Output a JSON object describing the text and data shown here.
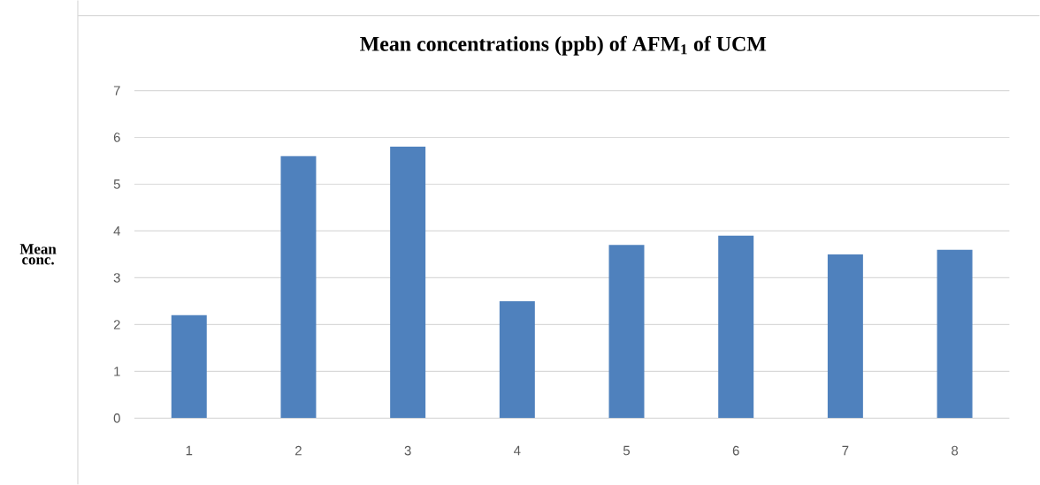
{
  "chart_data": {
    "type": "bar",
    "title": "Mean concentrations (ppb) of AFM$_{1}$ of  UCM",
    "ylabel": "Mean conc.",
    "categories": [
      "1",
      "2",
      "3",
      "4",
      "5",
      "6",
      "7",
      "8"
    ],
    "values": [
      2.2,
      5.6,
      5.8,
      2.5,
      3.7,
      3.9,
      3.5,
      3.6
    ],
    "color": "#4f81bd",
    "ylim": [
      0,
      7
    ],
    "yticks": [
      0,
      1,
      2,
      3,
      4,
      5,
      6,
      7
    ],
    "grid": "y"
  }
}
